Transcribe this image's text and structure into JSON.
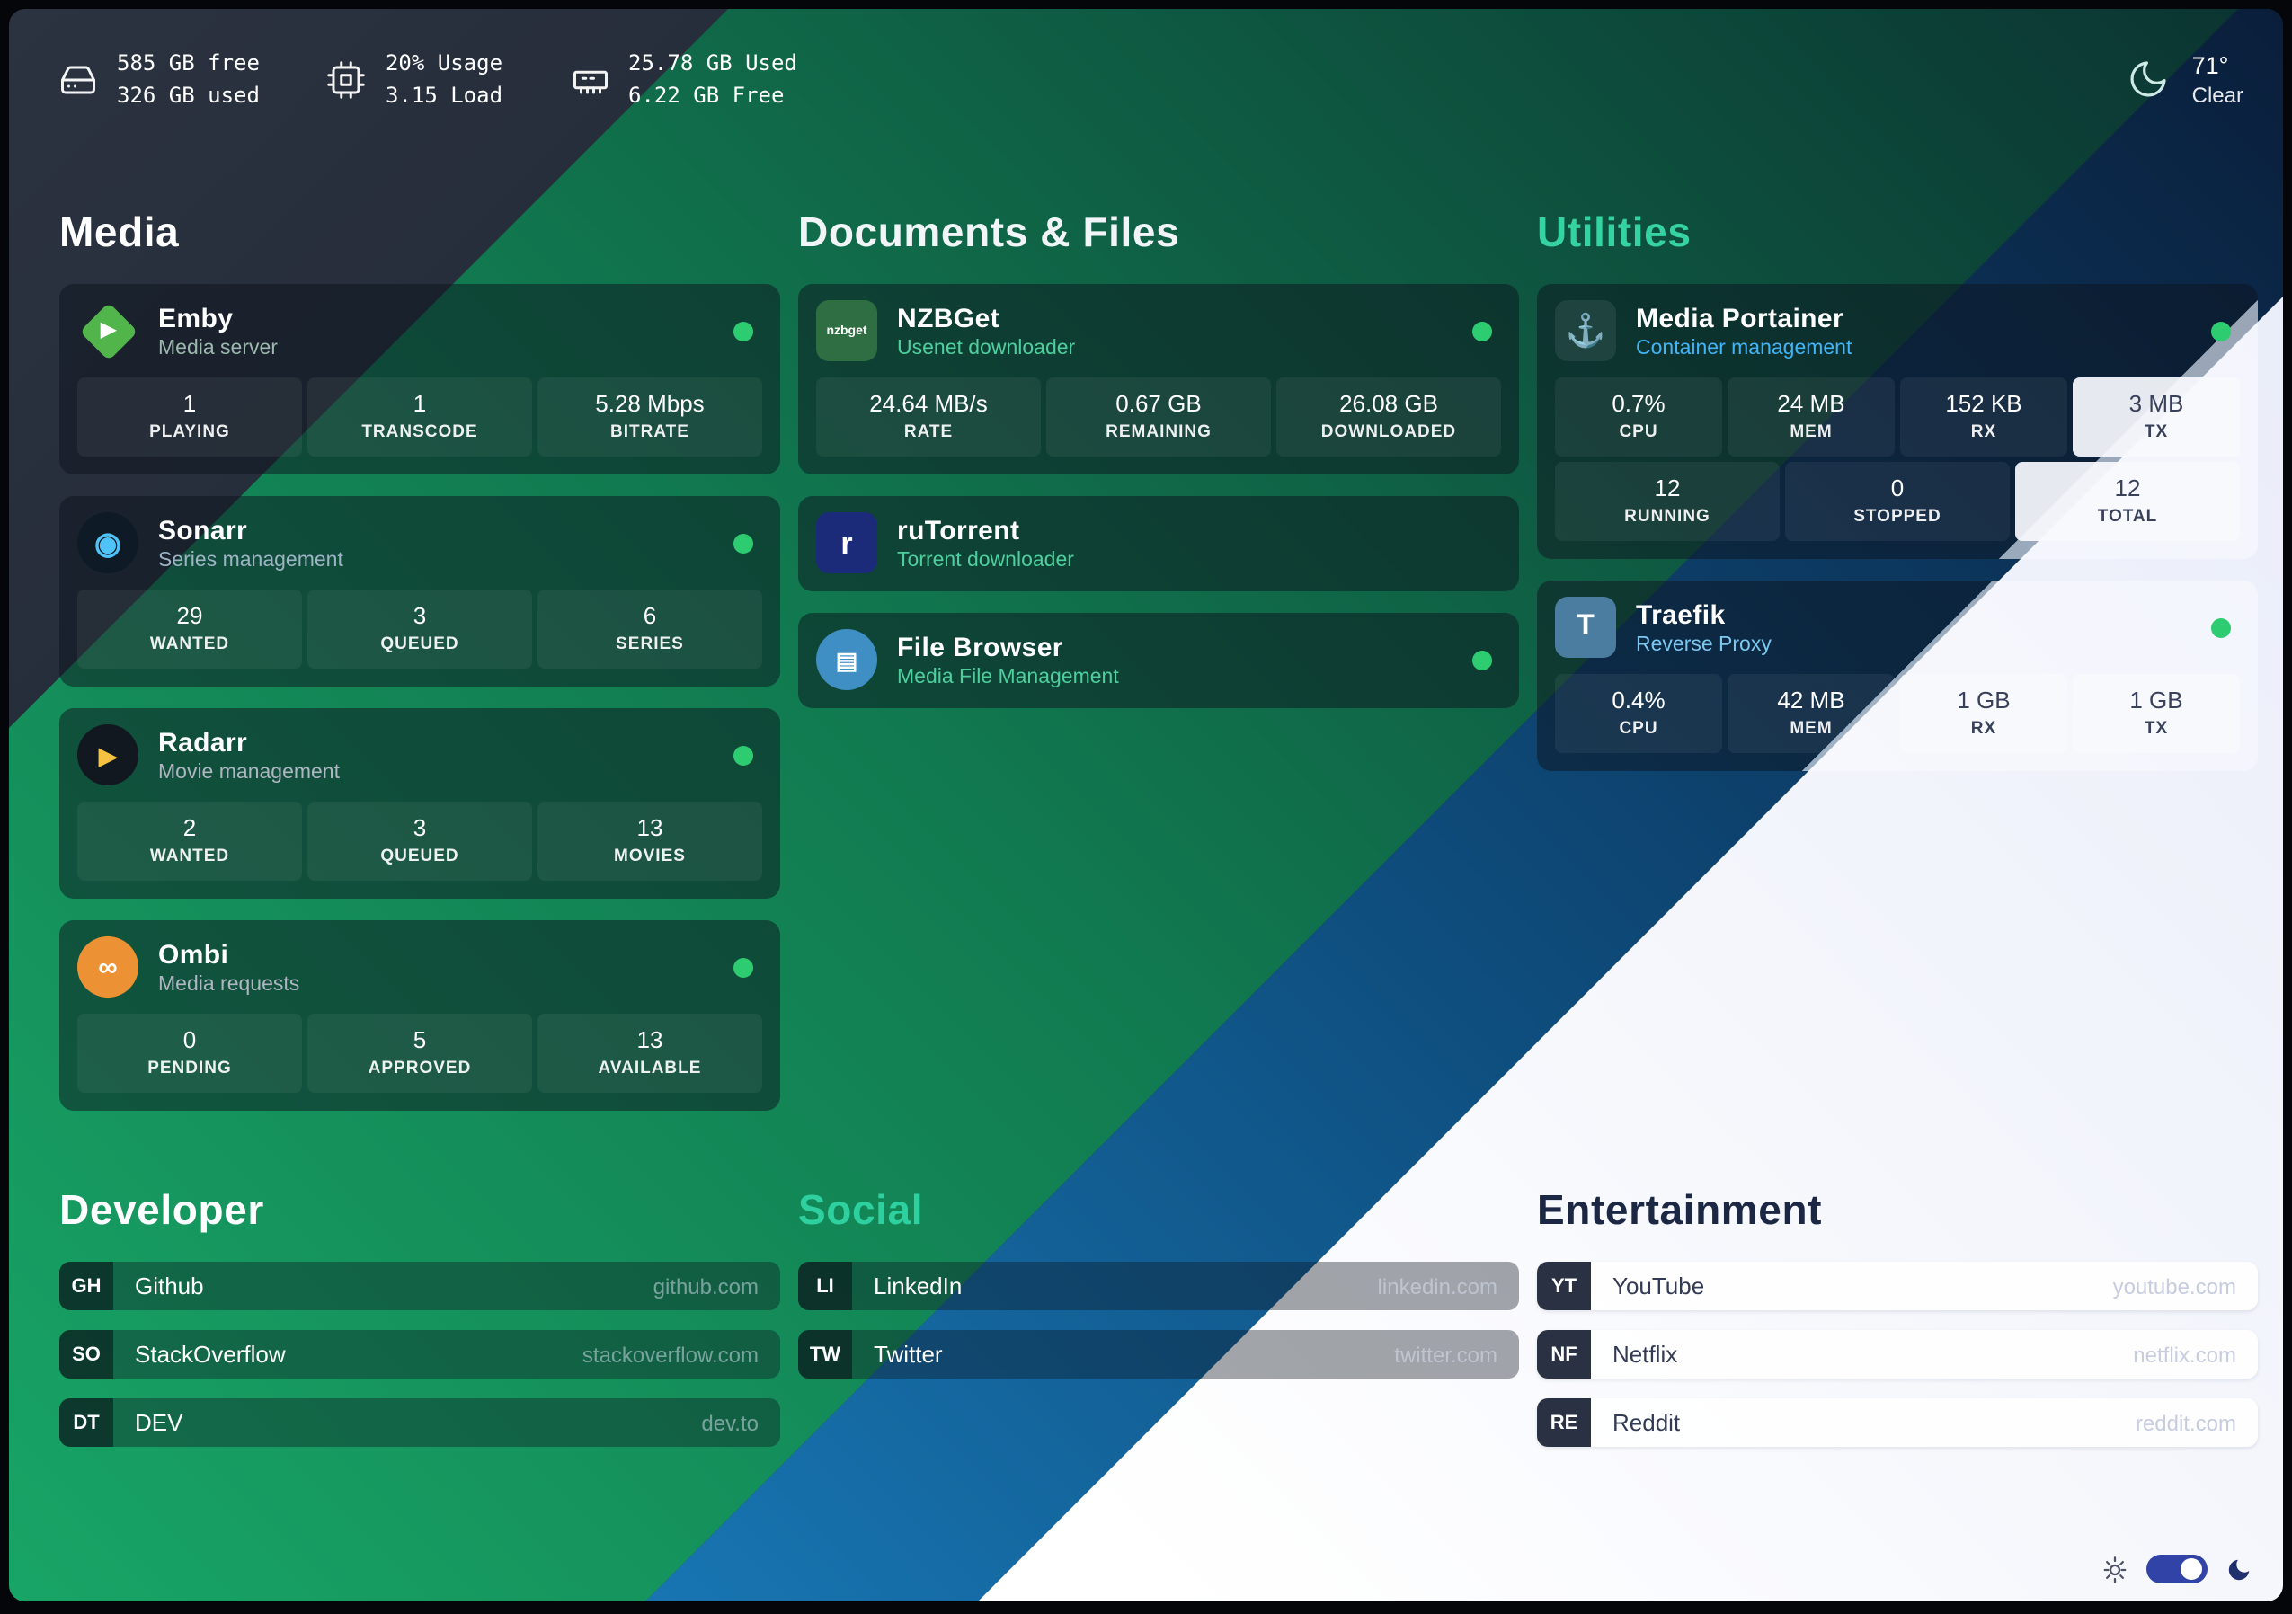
{
  "header": {
    "disk": {
      "line1": "585 GB free",
      "line2": "326 GB used"
    },
    "cpu": {
      "line1": "20% Usage",
      "line2": "3.15 Load"
    },
    "memory": {
      "line1": "25.78 GB Used",
      "line2": "6.22 GB Free"
    },
    "weather": {
      "temp": "71°",
      "condition": "Clear"
    }
  },
  "background_bands": [
    "#232b38",
    "#17a166",
    "#1877b4",
    "#ffffff"
  ],
  "app_sections": [
    {
      "title": "Media",
      "title_color": "#ffffff",
      "cards": [
        {
          "name": "Emby",
          "subtitle": "Media server",
          "subtitle_color": "#9db8ae",
          "status": "#2ecc71",
          "icon": {
            "shape": "diamond",
            "bg": "#52b54b",
            "glyph": "▶",
            "fg": "#ffffff",
            "size": 11
          },
          "stat_rows": [
            [
              {
                "value": "1",
                "label": "PLAYING"
              },
              {
                "value": "1",
                "label": "TRANSCODE"
              },
              {
                "value": "5.28 Mbps",
                "label": "BITRATE"
              }
            ]
          ]
        },
        {
          "name": "Sonarr",
          "subtitle": "Series management",
          "subtitle_color": "#9db4c4",
          "status": "#2ecc71",
          "icon": {
            "shape": "circle",
            "bg": "#0e1b26",
            "glyph": "◉",
            "fg": "#4fc3f7",
            "size": 17
          },
          "stat_rows": [
            [
              {
                "value": "29",
                "label": "WANTED"
              },
              {
                "value": "3",
                "label": "QUEUED"
              },
              {
                "value": "6",
                "label": "SERIES"
              }
            ]
          ]
        },
        {
          "name": "Radarr",
          "subtitle": "Movie management",
          "subtitle_color": "#aeb6c2",
          "status": "#2ecc71",
          "icon": {
            "shape": "circle",
            "bg": "#11181f",
            "glyph": "▶",
            "fg": "#f5c242",
            "size": 13
          },
          "stat_rows": [
            [
              {
                "value": "2",
                "label": "WANTED"
              },
              {
                "value": "3",
                "label": "QUEUED"
              },
              {
                "value": "13",
                "label": "MOVIES"
              }
            ]
          ]
        },
        {
          "name": "Ombi",
          "subtitle": "Media requests",
          "subtitle_color": "#aeb6c2",
          "status": "#2ecc71",
          "icon": {
            "shape": "circle",
            "bg": "#ed9234",
            "glyph": "∞",
            "fg": "#ffffff",
            "size": 15
          },
          "stat_rows": [
            [
              {
                "value": "0",
                "label": "PENDING"
              },
              {
                "value": "5",
                "label": "APPROVED"
              },
              {
                "value": "13",
                "label": "AVAILABLE"
              }
            ]
          ]
        }
      ]
    },
    {
      "title": "Documents & Files",
      "title_color": "#f2f5f8",
      "cards": [
        {
          "name": "NZBGet",
          "subtitle": "Usenet downloader",
          "subtitle_color": "#4ecf9d",
          "status": "#2ecc71",
          "icon": {
            "shape": "square",
            "bg": "#2f6e42",
            "glyph": "nzbget",
            "fg": "#ffffff",
            "size": 7
          },
          "stat_rows": [
            [
              {
                "value": "24.64 MB/s",
                "label": "RATE"
              },
              {
                "value": "0.67 GB",
                "label": "REMAINING"
              },
              {
                "value": "26.08 GB",
                "label": "DOWNLOADED"
              }
            ]
          ]
        },
        {
          "name": "ruTorrent",
          "subtitle": "Torrent downloader",
          "subtitle_color": "#4ecf9d",
          "status": null,
          "icon": {
            "shape": "square",
            "bg": "#1b2b7a",
            "glyph": "r",
            "fg": "#ffffff",
            "size": 17
          },
          "stat_rows": []
        },
        {
          "name": "File Browser",
          "subtitle": "Media File Management",
          "subtitle_color": "#4ecf9d",
          "status": "#2ecc71",
          "icon": {
            "shape": "circle",
            "bg": "#3f8fc4",
            "glyph": "▤",
            "fg": "#ffffff",
            "size": 13
          },
          "stat_rows": []
        }
      ]
    },
    {
      "title": "Utilities",
      "title_color": "#35d3a0",
      "cards": [
        {
          "name": "Media Portainer",
          "subtitle": "Container management",
          "subtitle_color": "#43b4f4",
          "status": "#2ecc71",
          "split": 74,
          "icon": {
            "shape": "square",
            "bg": "rgba(255,255,255,0.08)",
            "glyph": "⚓",
            "fg": "#4db5f0",
            "size": 18
          },
          "stat_rows": [
            [
              {
                "value": "0.7%",
                "label": "CPU"
              },
              {
                "value": "24 MB",
                "label": "MEM"
              },
              {
                "value": "152 KB",
                "label": "RX"
              },
              {
                "value": "3 MB",
                "label": "TX",
                "light": true
              }
            ],
            [
              {
                "value": "12",
                "label": "RUNNING"
              },
              {
                "value": "0",
                "label": "STOPPED"
              },
              {
                "value": "12",
                "label": "TOTAL",
                "light": true
              }
            ]
          ]
        },
        {
          "name": "Traefik",
          "subtitle": "Reverse Proxy",
          "subtitle_color": "#7cc7ef",
          "status": "#2ecc71",
          "split": 50,
          "icon": {
            "shape": "square",
            "bg": "#4a7d9f",
            "glyph": "T",
            "fg": "#ffffff",
            "size": 16
          },
          "stat_rows": [
            [
              {
                "value": "0.4%",
                "label": "CPU"
              },
              {
                "value": "42 MB",
                "label": "MEM"
              },
              {
                "value": "1 GB",
                "label": "RX",
                "light": true
              },
              {
                "value": "1 GB",
                "label": "TX",
                "light": true
              }
            ]
          ]
        }
      ]
    }
  ],
  "bookmark_sections": [
    {
      "title": "Developer",
      "title_color": "#ffffff",
      "theme": "dark",
      "items": [
        {
          "tag": "GH",
          "name": "Github",
          "url": "github.com"
        },
        {
          "tag": "SO",
          "name": "StackOverflow",
          "url": "stackoverflow.com"
        },
        {
          "tag": "DT",
          "name": "DEV",
          "url": "dev.to"
        }
      ]
    },
    {
      "title": "Social",
      "title_color": "#2fd0a0",
      "theme": "dark",
      "items": [
        {
          "tag": "LI",
          "name": "LinkedIn",
          "url": "linkedin.com"
        },
        {
          "tag": "TW",
          "name": "Twitter",
          "url": "twitter.com"
        }
      ]
    },
    {
      "title": "Entertainment",
      "title_color": "#1c2744",
      "theme": "light",
      "items": [
        {
          "tag": "YT",
          "name": "YouTube",
          "url": "youtube.com"
        },
        {
          "tag": "NF",
          "name": "Netflix",
          "url": "netflix.com"
        },
        {
          "tag": "RE",
          "name": "Reddit",
          "url": "reddit.com"
        }
      ]
    }
  ]
}
